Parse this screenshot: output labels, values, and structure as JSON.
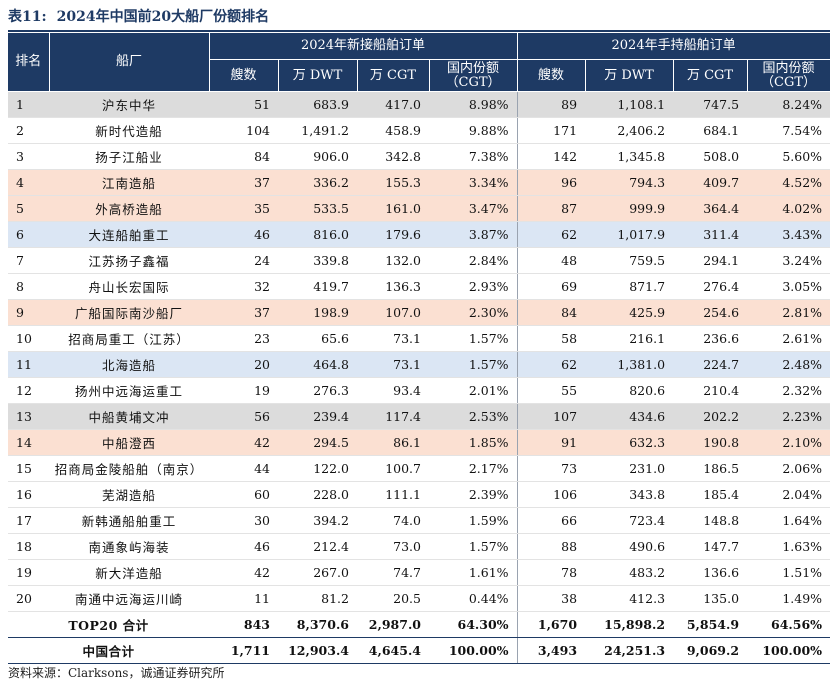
{
  "title": {
    "number": "表11:",
    "text": "2024年中国前20大船厂份额排名"
  },
  "headers": {
    "rank": "排名",
    "yard": "船厂",
    "group_new": "2024年新接船舶订单",
    "group_hold": "2024年手持船舶订单",
    "cols_new": [
      "艘数",
      "万 DWT",
      "万 CGT",
      "国内份额（CGT）"
    ],
    "cols_hold": [
      "艘数",
      "万 DWT",
      "万 CGT",
      "国内份额（CGT）"
    ]
  },
  "rows": [
    {
      "rank": "1",
      "name": "沪东中华",
      "n1": "51",
      "d1": "683.9",
      "c1": "417.0",
      "s1": "8.98%",
      "n2": "89",
      "d2": "1,108.1",
      "c2": "747.5",
      "s2": "8.24%",
      "hl": "gray"
    },
    {
      "rank": "2",
      "name": "新时代造船",
      "n1": "104",
      "d1": "1,491.2",
      "c1": "458.9",
      "s1": "9.88%",
      "n2": "171",
      "d2": "2,406.2",
      "c2": "684.1",
      "s2": "7.54%",
      "hl": ""
    },
    {
      "rank": "3",
      "name": "扬子江船业",
      "n1": "84",
      "d1": "906.0",
      "c1": "342.8",
      "s1": "7.38%",
      "n2": "142",
      "d2": "1,345.8",
      "c2": "508.0",
      "s2": "5.60%",
      "hl": ""
    },
    {
      "rank": "4",
      "name": "江南造船",
      "n1": "37",
      "d1": "336.2",
      "c1": "155.3",
      "s1": "3.34%",
      "n2": "96",
      "d2": "794.3",
      "c2": "409.7",
      "s2": "4.52%",
      "hl": "pink"
    },
    {
      "rank": "5",
      "name": "外高桥造船",
      "n1": "35",
      "d1": "533.5",
      "c1": "161.0",
      "s1": "3.47%",
      "n2": "87",
      "d2": "999.9",
      "c2": "364.4",
      "s2": "4.02%",
      "hl": "pink"
    },
    {
      "rank": "6",
      "name": "大连船舶重工",
      "n1": "46",
      "d1": "816.0",
      "c1": "179.6",
      "s1": "3.87%",
      "n2": "62",
      "d2": "1,017.9",
      "c2": "311.4",
      "s2": "3.43%",
      "hl": "blue"
    },
    {
      "rank": "7",
      "name": "江苏扬子鑫福",
      "n1": "24",
      "d1": "339.8",
      "c1": "132.0",
      "s1": "2.84%",
      "n2": "48",
      "d2": "759.5",
      "c2": "294.1",
      "s2": "3.24%",
      "hl": ""
    },
    {
      "rank": "8",
      "name": "舟山长宏国际",
      "n1": "32",
      "d1": "419.7",
      "c1": "136.3",
      "s1": "2.93%",
      "n2": "69",
      "d2": "871.7",
      "c2": "276.4",
      "s2": "3.05%",
      "hl": ""
    },
    {
      "rank": "9",
      "name": "广船国际南沙船厂",
      "n1": "37",
      "d1": "198.9",
      "c1": "107.0",
      "s1": "2.30%",
      "n2": "84",
      "d2": "425.9",
      "c2": "254.6",
      "s2": "2.81%",
      "hl": "pink"
    },
    {
      "rank": "10",
      "name": "招商局重工（江苏）",
      "n1": "23",
      "d1": "65.6",
      "c1": "73.1",
      "s1": "1.57%",
      "n2": "58",
      "d2": "216.1",
      "c2": "236.6",
      "s2": "2.61%",
      "hl": ""
    },
    {
      "rank": "11",
      "name": "北海造船",
      "n1": "20",
      "d1": "464.8",
      "c1": "73.1",
      "s1": "1.57%",
      "n2": "62",
      "d2": "1,381.0",
      "c2": "224.7",
      "s2": "2.48%",
      "hl": "blue"
    },
    {
      "rank": "12",
      "name": "扬州中远海运重工",
      "n1": "19",
      "d1": "276.3",
      "c1": "93.4",
      "s1": "2.01%",
      "n2": "55",
      "d2": "820.6",
      "c2": "210.4",
      "s2": "2.32%",
      "hl": ""
    },
    {
      "rank": "13",
      "name": "中船黄埔文冲",
      "n1": "56",
      "d1": "239.4",
      "c1": "117.4",
      "s1": "2.53%",
      "n2": "107",
      "d2": "434.6",
      "c2": "202.2",
      "s2": "2.23%",
      "hl": "gray"
    },
    {
      "rank": "14",
      "name": "中船澄西",
      "n1": "42",
      "d1": "294.5",
      "c1": "86.1",
      "s1": "1.85%",
      "n2": "91",
      "d2": "632.3",
      "c2": "190.8",
      "s2": "2.10%",
      "hl": "pink"
    },
    {
      "rank": "15",
      "name": "招商局金陵船舶（南京）",
      "n1": "44",
      "d1": "122.0",
      "c1": "100.7",
      "s1": "2.17%",
      "n2": "73",
      "d2": "231.0",
      "c2": "186.5",
      "s2": "2.06%",
      "hl": ""
    },
    {
      "rank": "16",
      "name": "芜湖造船",
      "n1": "60",
      "d1": "228.0",
      "c1": "111.1",
      "s1": "2.39%",
      "n2": "106",
      "d2": "343.8",
      "c2": "185.4",
      "s2": "2.04%",
      "hl": ""
    },
    {
      "rank": "17",
      "name": "新韩通船舶重工",
      "n1": "30",
      "d1": "394.2",
      "c1": "74.0",
      "s1": "1.59%",
      "n2": "66",
      "d2": "723.4",
      "c2": "148.8",
      "s2": "1.64%",
      "hl": ""
    },
    {
      "rank": "18",
      "name": "南通象屿海装",
      "n1": "46",
      "d1": "212.4",
      "c1": "73.0",
      "s1": "1.57%",
      "n2": "88",
      "d2": "490.6",
      "c2": "147.7",
      "s2": "1.63%",
      "hl": ""
    },
    {
      "rank": "19",
      "name": "新大洋造船",
      "n1": "42",
      "d1": "267.0",
      "c1": "74.7",
      "s1": "1.61%",
      "n2": "78",
      "d2": "483.2",
      "c2": "136.6",
      "s2": "1.51%",
      "hl": ""
    },
    {
      "rank": "20",
      "name": "南通中远海运川崎",
      "n1": "11",
      "d1": "81.2",
      "c1": "20.5",
      "s1": "0.44%",
      "n2": "38",
      "d2": "412.3",
      "c2": "135.0",
      "s2": "1.49%",
      "hl": ""
    }
  ],
  "totals": [
    {
      "name": "TOP20 合计",
      "n1": "843",
      "d1": "8,370.6",
      "c1": "2,987.0",
      "s1": "64.30%",
      "n2": "1,670",
      "d2": "15,898.2",
      "c2": "5,854.9",
      "s2": "64.56%"
    },
    {
      "name": "中国合计",
      "n1": "1,711",
      "d1": "12,903.4",
      "c1": "4,645.4",
      "s1": "100.00%",
      "n2": "3,493",
      "d2": "24,251.3",
      "c2": "9,069.2",
      "s2": "100.00%"
    }
  ],
  "source": "资料来源：Clarksons，诚通证券研究所"
}
